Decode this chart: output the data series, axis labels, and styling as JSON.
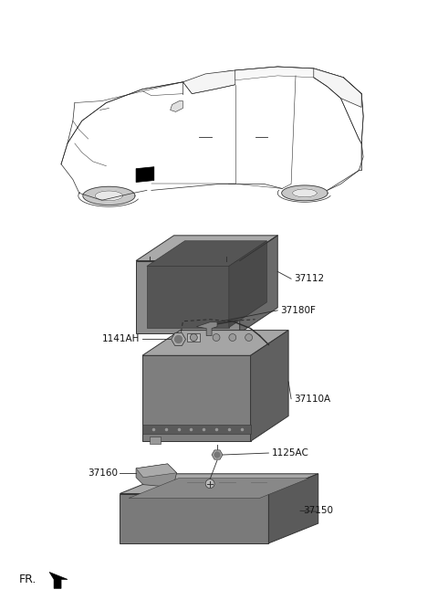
{
  "background_color": "#ffffff",
  "fig_width": 4.8,
  "fig_height": 6.57,
  "dpi": 100,
  "parts": [
    {
      "id": "37112",
      "label": "37112"
    },
    {
      "id": "37180F",
      "label": "37180F"
    },
    {
      "id": "1141AH",
      "label": "1141AH"
    },
    {
      "id": "37110A",
      "label": "37110A"
    },
    {
      "id": "1125AC",
      "label": "1125AC"
    },
    {
      "id": "37160",
      "label": "37160"
    },
    {
      "id": "37150",
      "label": "37150"
    }
  ],
  "fr_label": "FR.",
  "line_color": "#2a2a2a",
  "part_fill_front": "#8c8c8c",
  "part_fill_top": "#aaaaaa",
  "part_fill_right": "#6a6a6a",
  "part_fill_dark": "#555555",
  "part_edge": "#333333"
}
